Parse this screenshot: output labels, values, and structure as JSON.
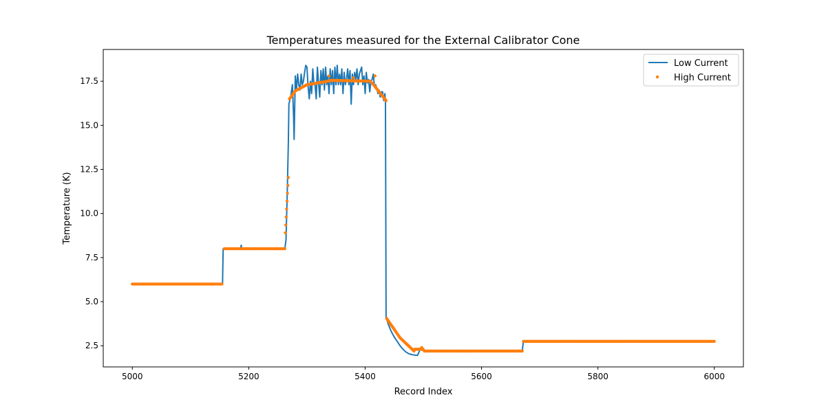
{
  "chart_data": {
    "type": "line",
    "title": "Temperatures measured for the External Calibrator Cone",
    "xlabel": "Record Index",
    "ylabel": "Temperature (K)",
    "xlim": [
      4950,
      6050
    ],
    "ylim": [
      1.3,
      19.3
    ],
    "xticks": [
      5000,
      5200,
      5400,
      5600,
      5800,
      6000
    ],
    "yticks": [
      2.5,
      5.0,
      7.5,
      10.0,
      12.5,
      15.0,
      17.5
    ],
    "ytick_labels": [
      "2.5",
      "5.0",
      "7.5",
      "10.0",
      "12.5",
      "15.0",
      "17.5"
    ],
    "grid": false,
    "legend_position": "top-right",
    "colors": {
      "low": "#1f77b4",
      "high": "#ff7f0e"
    },
    "series": [
      {
        "name": "Low Current",
        "kind": "line",
        "x": [
          5000,
          5155,
          5156,
          5186,
          5187,
          5188,
          5262,
          5264,
          5266,
          5268,
          5269,
          5272,
          5275,
          5277,
          5278,
          5280,
          5282,
          5284,
          5286,
          5288,
          5290,
          5292,
          5294,
          5296,
          5298,
          5300,
          5302,
          5304,
          5306,
          5308,
          5310,
          5312,
          5314,
          5316,
          5318,
          5320,
          5322,
          5324,
          5326,
          5328,
          5330,
          5332,
          5334,
          5336,
          5338,
          5340,
          5342,
          5344,
          5346,
          5348,
          5350,
          5352,
          5354,
          5356,
          5358,
          5360,
          5362,
          5364,
          5366,
          5368,
          5370,
          5372,
          5374,
          5376,
          5378,
          5380,
          5382,
          5384,
          5386,
          5388,
          5390,
          5392,
          5394,
          5396,
          5398,
          5400,
          5402,
          5404,
          5406,
          5408,
          5410,
          5412,
          5414,
          5416,
          5418,
          5420,
          5422,
          5424,
          5426,
          5428,
          5430,
          5432,
          5434,
          5435,
          5436,
          5440,
          5445,
          5450,
          5455,
          5460,
          5465,
          5470,
          5475,
          5480,
          5485,
          5490,
          5496,
          5498,
          5502,
          5504,
          5670,
          5672,
          6000
        ],
        "y": [
          6.0,
          6.0,
          8.0,
          8.0,
          8.2,
          8.0,
          8.0,
          8.5,
          11.0,
          14.0,
          16.2,
          16.6,
          17.3,
          15.5,
          14.2,
          17.8,
          17.0,
          17.9,
          17.3,
          17.0,
          17.9,
          17.3,
          17.5,
          18.0,
          18.4,
          18.3,
          17.2,
          16.5,
          17.5,
          16.8,
          18.2,
          17.3,
          17.3,
          16.5,
          18.3,
          17.4,
          16.6,
          18.1,
          17.3,
          18.2,
          17.0,
          18.3,
          17.3,
          17.8,
          16.8,
          18.2,
          17.3,
          18.1,
          16.8,
          18.3,
          17.3,
          18.4,
          17.3,
          17.9,
          17.3,
          18.2,
          16.8,
          18.0,
          17.3,
          17.6,
          18.2,
          17.3,
          18.1,
          16.2,
          17.9,
          17.3,
          18.0,
          17.6,
          18.2,
          17.3,
          17.9,
          18.1,
          18.3,
          17.3,
          17.8,
          16.8,
          18.0,
          17.4,
          17.6,
          16.9,
          17.5,
          17.6,
          17.9,
          17.2,
          17.3,
          17.1,
          16.8,
          17.0,
          16.6,
          16.9,
          16.9,
          16.4,
          16.8,
          16.3,
          4.1,
          3.7,
          3.3,
          3.0,
          2.75,
          2.5,
          2.3,
          2.15,
          2.05,
          2.0,
          1.97,
          1.95,
          2.4,
          2.25,
          2.2,
          2.2,
          2.2,
          2.75,
          2.75
        ]
      },
      {
        "name": "High Current",
        "kind": "scatter",
        "segments": [
          {
            "x": [
              5000,
              5154
            ],
            "y": [
              6.0,
              6.0
            ],
            "step": 2
          },
          {
            "x": [
              5158,
              5262
            ],
            "y": [
              8.0,
              8.0
            ],
            "step": 2
          },
          {
            "x": [
              5263,
              5268
            ],
            "y": [
              8.9,
              12.1
            ],
            "step": 0.7
          },
          {
            "x": [
              5270,
              5280
            ],
            "y": [
              16.5,
              16.95
            ],
            "step": 1.2
          },
          {
            "x": [
              5280,
              5300
            ],
            "y": [
              16.95,
              17.3
            ],
            "step": 1.5
          },
          {
            "x": [
              5300,
              5340
            ],
            "y": [
              17.3,
              17.52
            ],
            "step": 1.5
          },
          {
            "x": [
              5340,
              5410
            ],
            "y": [
              17.55,
              17.5
            ],
            "step": 1.5
          },
          {
            "x": [
              5412,
              5436
            ],
            "y": [
              17.4,
              16.4
            ],
            "step": 1.2
          },
          {
            "x": [
              5437,
              5460
            ],
            "y": [
              4.05,
              2.95
            ],
            "step": 1.2
          },
          {
            "x": [
              5460,
              5484
            ],
            "y": [
              2.95,
              2.2
            ],
            "step": 1.2
          },
          {
            "x": [
              5485,
              5496
            ],
            "y": [
              2.3,
              2.3
            ],
            "step": 1.5
          },
          {
            "x": [
              5497,
              5502
            ],
            "y": [
              2.4,
              2.2
            ],
            "step": 1.5
          },
          {
            "x": [
              5502,
              5670
            ],
            "y": [
              2.2,
              2.2
            ],
            "step": 2
          },
          {
            "x": [
              5672,
              6000
            ],
            "y": [
              2.75,
              2.75
            ],
            "step": 2
          }
        ],
        "outliers": {
          "x": [
            5338,
            5380,
            5417
          ],
          "y": [
            17.8,
            17.7,
            17.8
          ]
        }
      }
    ]
  }
}
